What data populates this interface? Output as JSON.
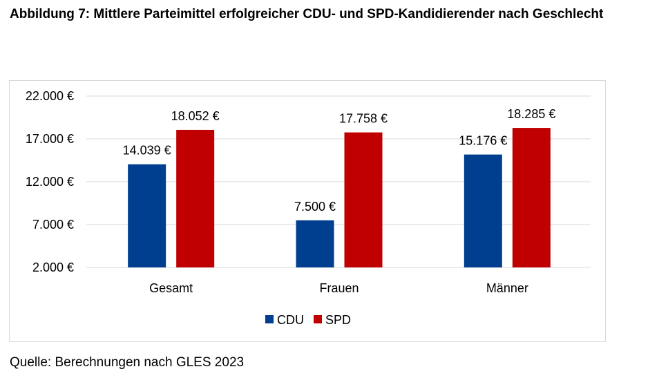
{
  "caption": "Abbildung 7: Mittlere Parteimittel erfolgreicher CDU- und SPD-Kandidierender nach Geschlecht",
  "source": "Quelle: Berechnungen nach GLES 2023",
  "chart_data": {
    "type": "bar",
    "title": "",
    "xlabel": "",
    "ylabel": "",
    "categories": [
      "Gesamt",
      "Frauen",
      "Männer"
    ],
    "series": [
      {
        "name": "CDU",
        "color": "#003f8f",
        "values": [
          14039,
          7500,
          15176
        ],
        "labels": [
          "14.039 €",
          "7.500 €",
          "15.176 €"
        ]
      },
      {
        "name": "SPD",
        "color": "#c00000",
        "values": [
          18052,
          17758,
          18285
        ],
        "labels": [
          "18.052 €",
          "17.758 €",
          "18.285 €"
        ]
      }
    ],
    "ylim": [
      2000,
      22000
    ],
    "yticks": [
      2000,
      7000,
      12000,
      17000,
      22000
    ],
    "ytick_labels": [
      "2.000 €",
      "7.000 €",
      "12.000 €",
      "17.000 €",
      "22.000 €"
    ],
    "grid": true,
    "legend_position": "bottom"
  }
}
